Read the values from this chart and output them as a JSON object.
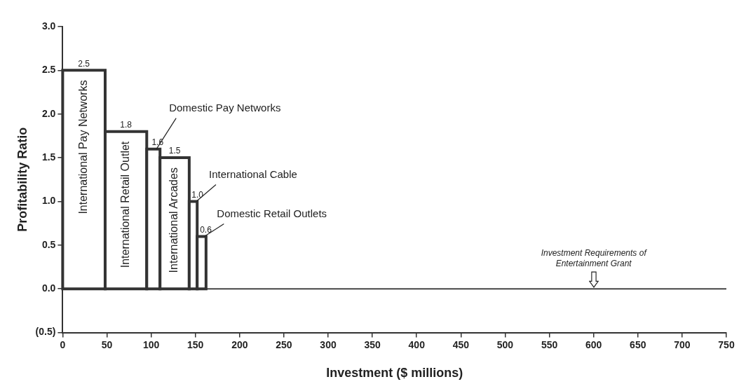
{
  "chart_data": {
    "type": "histogram",
    "xlabel": "Investment ($ millions)",
    "ylabel": "Profitability Ratio",
    "bins": [
      0,
      48,
      95,
      110,
      143,
      152,
      162
    ],
    "values": [
      2.5,
      1.8,
      1.6,
      1.5,
      1.0,
      0.6
    ],
    "color": "#ffffff",
    "value_labels": [
      "2.5",
      "1.8",
      "1.6",
      "1.5",
      "1.0",
      "0.6"
    ],
    "xlim": [
      0,
      750
    ],
    "xticks": [
      0,
      50,
      100,
      150,
      200,
      250,
      300,
      350,
      400,
      450,
      500,
      550,
      600,
      650,
      700,
      750
    ],
    "ylim": [
      -0.5,
      3.0
    ],
    "yticks": [
      {
        "value": -0.5,
        "label": "(0.5)"
      },
      {
        "value": 0,
        "label": "0.0"
      },
      {
        "value": 0.5,
        "label": "0.5"
      },
      {
        "value": 1,
        "label": "1.0"
      },
      {
        "value": 1.5,
        "label": "1.5"
      },
      {
        "value": 2,
        "label": "2.0"
      },
      {
        "value": 2.5,
        "label": "2.5"
      },
      {
        "value": 3,
        "label": "3.0"
      }
    ],
    "ref_lines": [
      {
        "axis": "y",
        "value": 0,
        "color": "#444444"
      }
    ],
    "grid": false,
    "legend": false,
    "annotations": [
      {
        "text": "International Pay Networks",
        "x": 24,
        "y": 2.5
      },
      {
        "text": "International Retail Outlet",
        "x": 71.5,
        "y": 1.8
      },
      {
        "text": "Domestic Pay Networks",
        "x": 106,
        "y": 1.6
      },
      {
        "text": "International Arcades",
        "x": 126.5,
        "y": 1.5
      },
      {
        "text": "International Cable",
        "x": 151,
        "y": 1.0
      },
      {
        "text": "Domestic Retail Outlets",
        "x": 160,
        "y": 0.6
      },
      {
        "text": "Investment Requirements of Entertainment Grant",
        "x": 600,
        "y": 0
      }
    ]
  }
}
